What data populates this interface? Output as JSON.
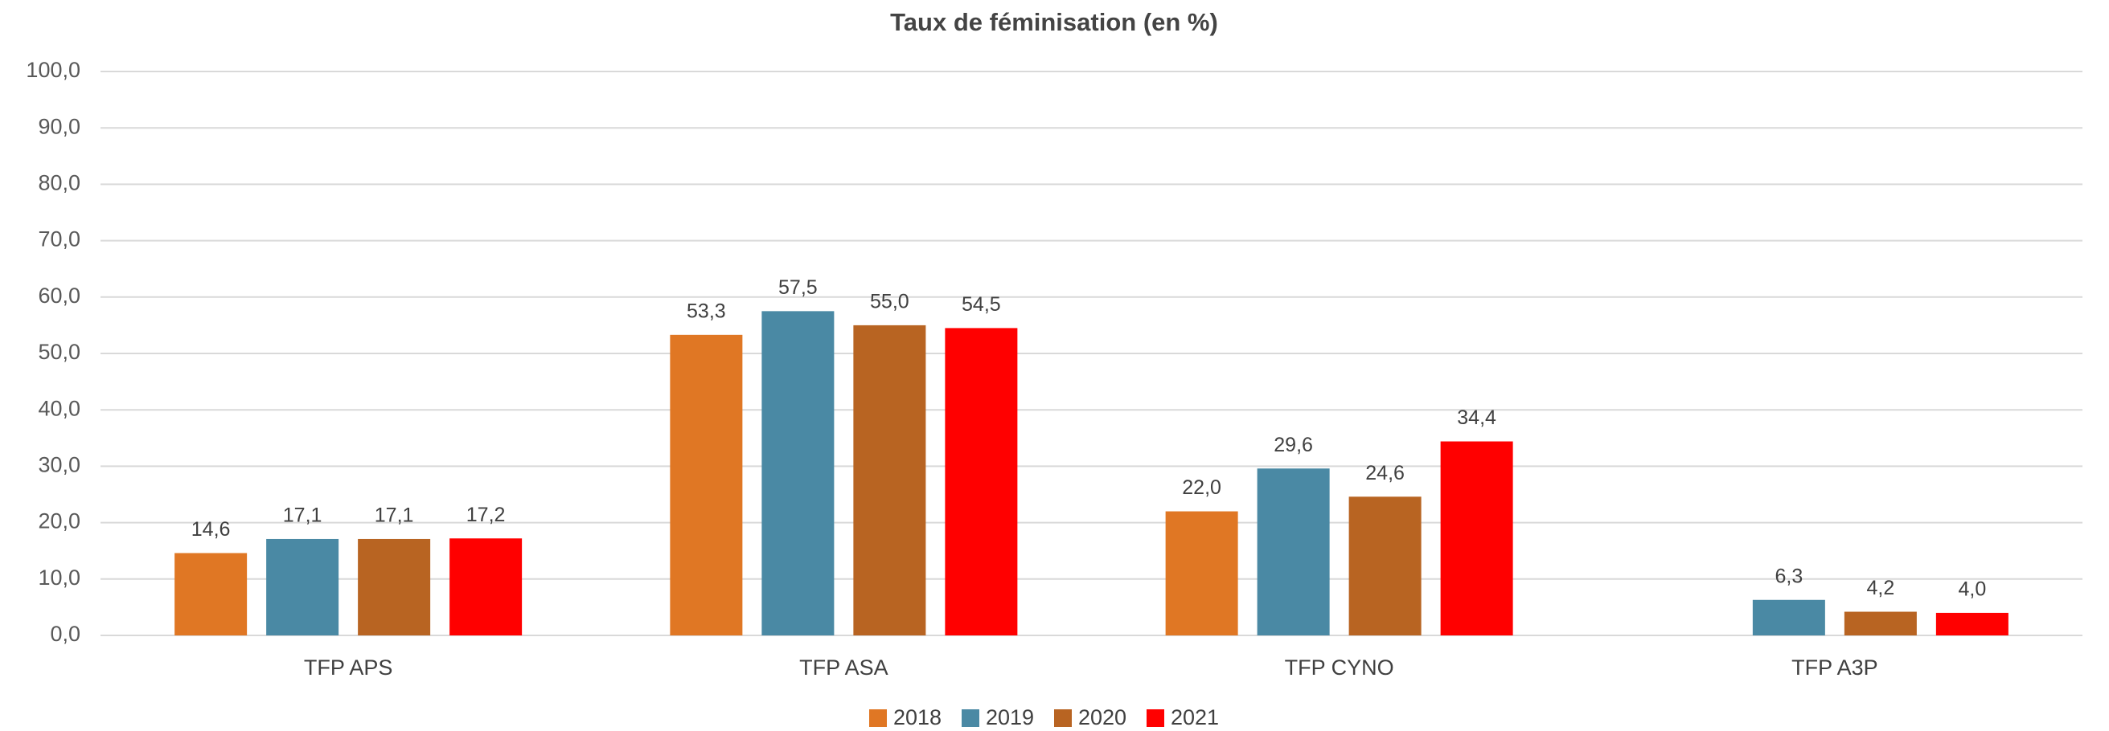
{
  "chart_data": {
    "type": "bar",
    "title": "Taux de féminisation (en %)",
    "categories": [
      "TFP APS",
      "TFP ASA",
      "TFP CYNO",
      "TFP A3P"
    ],
    "series": [
      {
        "name": "2018",
        "color": "#e07724",
        "values": [
          14.6,
          53.3,
          22.0,
          null
        ],
        "value_labels": [
          "14,6",
          "53,3",
          "22,0",
          null
        ]
      },
      {
        "name": "2019",
        "color": "#4a89a4",
        "values": [
          17.1,
          57.5,
          29.6,
          6.3
        ],
        "value_labels": [
          "17,1",
          "57,5",
          "29,6",
          "6,3"
        ]
      },
      {
        "name": "2020",
        "color": "#b86422",
        "values": [
          17.1,
          55.0,
          24.6,
          4.2
        ],
        "value_labels": [
          "17,1",
          "55,0",
          "24,6",
          "4,2"
        ]
      },
      {
        "name": "2021",
        "color": "#ff0000",
        "values": [
          17.2,
          54.5,
          34.4,
          4.0
        ],
        "value_labels": [
          "17,2",
          "54,5",
          "34,4",
          "4,0"
        ]
      }
    ],
    "ylim": [
      0,
      100
    ],
    "yticks": [
      {
        "value": 0,
        "label": "0,0"
      },
      {
        "value": 10,
        "label": "10,0"
      },
      {
        "value": 20,
        "label": "20,0"
      },
      {
        "value": 30,
        "label": "30,0"
      },
      {
        "value": 40,
        "label": "40,0"
      },
      {
        "value": 50,
        "label": "50,0"
      },
      {
        "value": 60,
        "label": "60,0"
      },
      {
        "value": 70,
        "label": "70,0"
      },
      {
        "value": 80,
        "label": "80,0"
      },
      {
        "value": 90,
        "label": "90,0"
      },
      {
        "value": 100,
        "label": "100,0"
      }
    ],
    "grid": true,
    "legend": "bottom"
  }
}
